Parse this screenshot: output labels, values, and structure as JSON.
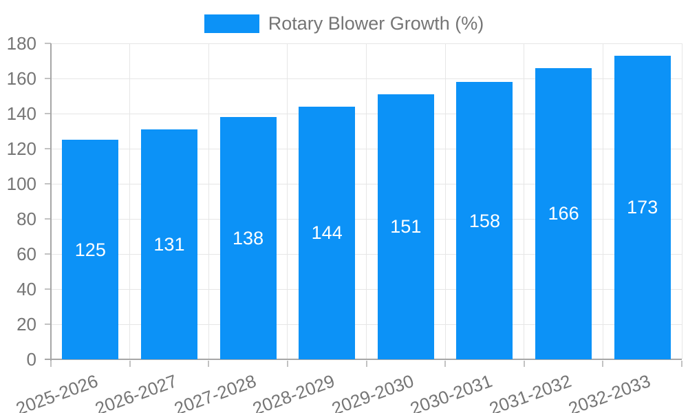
{
  "chart_data": {
    "type": "bar",
    "title": "",
    "categories": [
      "2025-2026",
      "2026-2027",
      "2027-2028",
      "2028-2029",
      "2029-2030",
      "2030-2031",
      "2031-2032",
      "2032-2033"
    ],
    "series": [
      {
        "name": "Rotary Blower Growth (%)",
        "values": [
          125,
          131,
          138,
          144,
          151,
          158,
          166,
          173
        ]
      }
    ],
    "value_labels": [
      "125",
      "131",
      "138",
      "144",
      "151",
      "158",
      "166",
      "173"
    ],
    "xlabel": "",
    "ylabel": "",
    "ylim": [
      0,
      180
    ],
    "ytick_step": 20,
    "ytick_labels": [
      "0",
      "20",
      "40",
      "60",
      "80",
      "100",
      "120",
      "140",
      "160",
      "180"
    ],
    "grid": true,
    "legend_position": "top",
    "colors": {
      "bar": "#0C92F7",
      "value_label": "#FFFFFF",
      "axis_text": "#757575",
      "gridline": "#E6E6E6",
      "axis_line": "#A6A6A6",
      "tick": "#C2C2C2",
      "background": "#FFFFFF"
    }
  },
  "legend": {
    "label": "Rotary Blower Growth (%)",
    "swatch_color": "#0C92F7"
  }
}
